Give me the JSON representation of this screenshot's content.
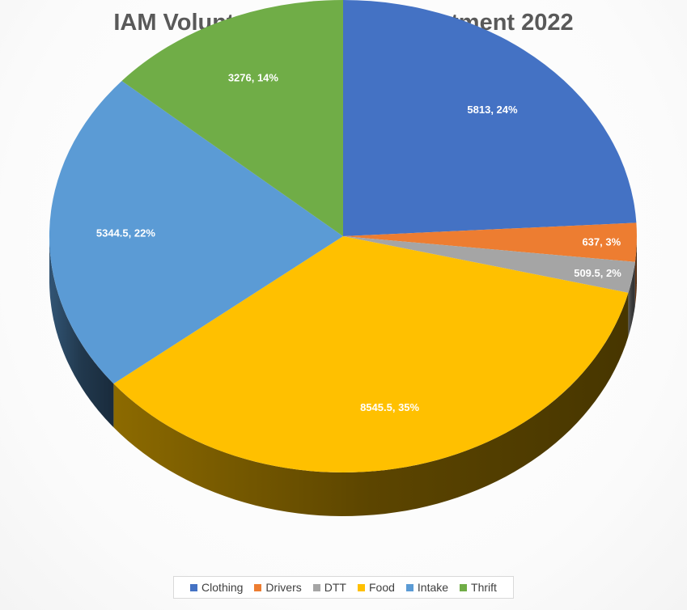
{
  "chart_data": {
    "type": "pie",
    "title": "IAM Volunteer Hours by Department 2022",
    "categories": [
      "Clothing",
      "Drivers",
      "DTT",
      "Food",
      "Intake",
      "Thrift"
    ],
    "values": [
      5813,
      637,
      509.5,
      8545.5,
      5344.5,
      3276
    ],
    "percent_labels": [
      "24%",
      "3%",
      "2%",
      "35%",
      "22%",
      "14%"
    ],
    "data_labels": [
      "5813, 24%",
      "637, 3%",
      "509.5, 2%",
      "8545.5, 35%",
      "5344.5, 22%",
      "3276, 14%"
    ],
    "colors": [
      "#4472c4",
      "#ed7d31",
      "#a5a5a5",
      "#ffc000",
      "#5b9bd5",
      "#70ad47"
    ],
    "legend_position": "bottom",
    "style": "3d"
  }
}
